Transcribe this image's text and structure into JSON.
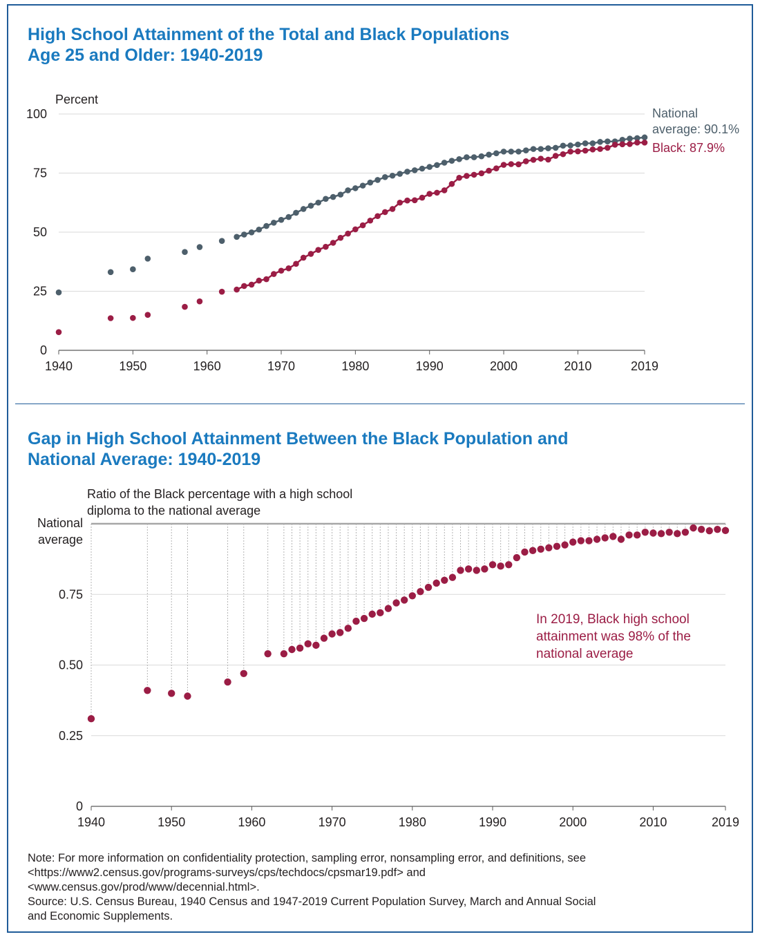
{
  "header": {
    "title_line1": "High School Attainment of the Total and Black Populations",
    "title_line2": "Age 25 and Older: 1940-2019"
  },
  "chart_data": [
    {
      "type": "scatter",
      "title": "High School Attainment of the Total and Black Populations Age 25 and Older: 1940-2019",
      "ylabel": "Percent",
      "ylim": [
        0,
        100
      ],
      "yticks": [
        0,
        25,
        50,
        75,
        100
      ],
      "xticks": [
        1940,
        1950,
        1960,
        1970,
        1980,
        1990,
        2000,
        2010,
        2019
      ],
      "xlim": [
        1940,
        2019
      ],
      "grid": true,
      "series": [
        {
          "name": "National average",
          "color": "#4d5f6b",
          "connect_from": 1964,
          "end_label": "National average: 90.1%",
          "x": [
            1940,
            1947,
            1950,
            1952,
            1957,
            1959,
            1962,
            1964,
            1965,
            1966,
            1967,
            1968,
            1969,
            1970,
            1971,
            1972,
            1973,
            1974,
            1975,
            1976,
            1977,
            1978,
            1979,
            1980,
            1981,
            1982,
            1983,
            1984,
            1985,
            1986,
            1987,
            1988,
            1989,
            1990,
            1991,
            1992,
            1993,
            1994,
            1995,
            1996,
            1997,
            1998,
            1999,
            2000,
            2001,
            2002,
            2003,
            2004,
            2005,
            2006,
            2007,
            2008,
            2009,
            2010,
            2011,
            2012,
            2013,
            2014,
            2015,
            2016,
            2017,
            2018,
            2019
          ],
          "y": [
            24.5,
            33.1,
            34.3,
            38.8,
            41.6,
            43.7,
            46.3,
            48.0,
            49.0,
            49.9,
            51.1,
            52.6,
            54.0,
            55.2,
            56.4,
            58.2,
            59.8,
            61.2,
            62.5,
            64.1,
            64.9,
            65.9,
            67.7,
            68.6,
            69.7,
            71.0,
            72.1,
            73.3,
            73.9,
            74.7,
            75.6,
            76.2,
            76.9,
            77.6,
            78.4,
            79.4,
            80.2,
            80.9,
            81.7,
            81.7,
            82.1,
            82.8,
            83.4,
            84.1,
            84.1,
            84.1,
            84.6,
            85.2,
            85.2,
            85.5,
            85.7,
            86.6,
            86.7,
            87.1,
            87.6,
            87.6,
            88.2,
            88.4,
            88.4,
            89.1,
            89.6,
            89.8,
            90.1
          ]
        },
        {
          "name": "Black",
          "color": "#9b1d45",
          "connect_from": 1964,
          "end_label": "Black: 87.9%",
          "x": [
            1940,
            1947,
            1950,
            1952,
            1957,
            1959,
            1962,
            1964,
            1965,
            1966,
            1967,
            1968,
            1969,
            1970,
            1971,
            1972,
            1973,
            1974,
            1975,
            1976,
            1977,
            1978,
            1979,
            1980,
            1981,
            1982,
            1983,
            1984,
            1985,
            1986,
            1987,
            1988,
            1989,
            1990,
            1991,
            1992,
            1993,
            1994,
            1995,
            1996,
            1997,
            1998,
            1999,
            2000,
            2001,
            2002,
            2003,
            2004,
            2005,
            2006,
            2007,
            2008,
            2009,
            2010,
            2011,
            2012,
            2013,
            2014,
            2015,
            2016,
            2017,
            2018,
            2019
          ],
          "y": [
            7.7,
            13.6,
            13.7,
            15.0,
            18.4,
            20.7,
            24.8,
            25.7,
            27.2,
            27.8,
            29.5,
            30.1,
            32.3,
            33.7,
            34.7,
            36.6,
            39.2,
            40.8,
            42.5,
            43.8,
            45.5,
            47.6,
            49.4,
            51.2,
            52.9,
            54.9,
            56.8,
            58.5,
            59.8,
            62.5,
            63.4,
            63.5,
            64.6,
            66.2,
            66.7,
            67.7,
            70.4,
            73.0,
            73.8,
            74.3,
            74.9,
            76.0,
            77.0,
            78.5,
            78.8,
            78.7,
            80.0,
            80.6,
            81.1,
            80.7,
            82.3,
            83.0,
            84.1,
            84.2,
            84.5,
            85.0,
            85.2,
            85.7,
            87.0,
            87.2,
            87.3,
            87.9,
            87.9
          ]
        }
      ]
    },
    {
      "type": "scatter",
      "title": "Gap in High School Attainment Between the Black Population and National Average: 1940-2019",
      "ylabel": "Ratio of the Black percentage with a high school diploma to the national average",
      "ylabel_line1": "Ratio of the Black percentage with a high school",
      "ylabel_line2": "diploma to the national average",
      "ylim": [
        0,
        1
      ],
      "yticks": [
        0,
        0.25,
        0.5,
        0.75
      ],
      "ytick_labels": [
        "0",
        "0.25",
        "0.50",
        "0.75"
      ],
      "reference_line": {
        "value": 1.0,
        "label_line1": "National",
        "label_line2": "average"
      },
      "xticks": [
        1940,
        1950,
        1960,
        1970,
        1980,
        1990,
        2000,
        2010,
        2019
      ],
      "xlim": [
        1940,
        2019
      ],
      "grid": true,
      "annotation": {
        "line1": "In 2019, Black high school",
        "line2": "attainment was 98% of the",
        "line3": "national average"
      },
      "series": [
        {
          "name": "Ratio",
          "color": "#9b1d45",
          "x": [
            1940,
            1947,
            1950,
            1952,
            1957,
            1959,
            1962,
            1964,
            1965,
            1966,
            1967,
            1968,
            1969,
            1970,
            1971,
            1972,
            1973,
            1974,
            1975,
            1976,
            1977,
            1978,
            1979,
            1980,
            1981,
            1982,
            1983,
            1984,
            1985,
            1986,
            1987,
            1988,
            1989,
            1990,
            1991,
            1992,
            1993,
            1994,
            1995,
            1996,
            1997,
            1998,
            1999,
            2000,
            2001,
            2002,
            2003,
            2004,
            2005,
            2006,
            2007,
            2008,
            2009,
            2010,
            2011,
            2012,
            2013,
            2014,
            2015,
            2016,
            2017,
            2018,
            2019
          ],
          "y": [
            0.31,
            0.41,
            0.4,
            0.39,
            0.44,
            0.47,
            0.54,
            0.54,
            0.555,
            0.56,
            0.575,
            0.57,
            0.595,
            0.61,
            0.615,
            0.63,
            0.655,
            0.665,
            0.68,
            0.685,
            0.7,
            0.72,
            0.73,
            0.745,
            0.76,
            0.775,
            0.79,
            0.8,
            0.81,
            0.835,
            0.84,
            0.835,
            0.84,
            0.855,
            0.85,
            0.855,
            0.88,
            0.9,
            0.905,
            0.91,
            0.915,
            0.92,
            0.925,
            0.935,
            0.94,
            0.94,
            0.945,
            0.95,
            0.955,
            0.945,
            0.96,
            0.96,
            0.97,
            0.967,
            0.965,
            0.97,
            0.965,
            0.97,
            0.985,
            0.98,
            0.975,
            0.98,
            0.976
          ]
        }
      ]
    }
  ],
  "section2": {
    "title_line1": "Gap in High School Attainment Between the Black Population and",
    "title_line2": "National Average: 1940-2019"
  },
  "footer": {
    "note_line1": "Note: For more information on confidentiality protection, sampling error, nonsampling error, and definitions, see",
    "note_line2": "<https://www2.census.gov/programs-surveys/cps/techdocs/cpsmar19.pdf> and",
    "note_line3": "<www.census.gov/prod/www/decennial.html>.",
    "source_line1": "Source: U.S. Census Bureau, 1940 Census and 1947-2019 Current Population Survey, March and Annual Social",
    "source_line2": "and Economic Supplements."
  }
}
